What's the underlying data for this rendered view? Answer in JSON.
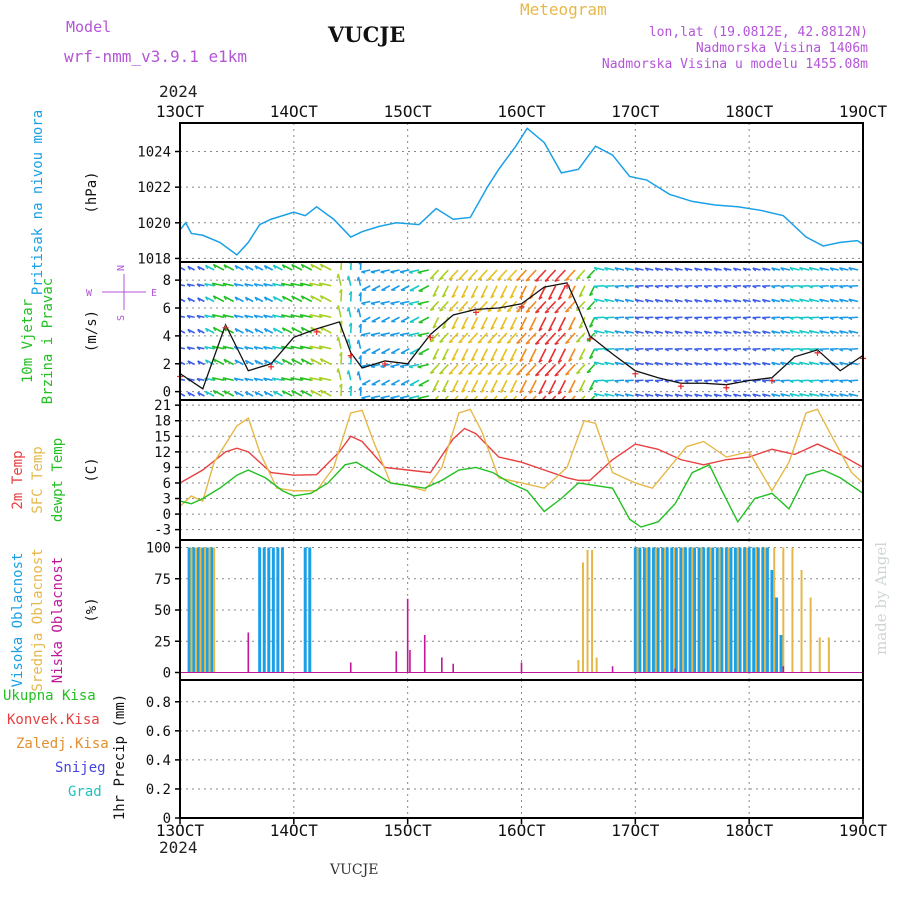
{
  "header": {
    "model_label": "Model",
    "model_name": "wrf-nmm_v3.9.1 e1km",
    "station": "VUCJE",
    "meteogram": "Meteogram",
    "lonlat": "lon,lat (19.0812E, 42.8812N)",
    "elev": "Nadmorska Visina 1406m",
    "elev_model": "Nadmorska Visina u modelu 1455.08m",
    "year": "2024",
    "footer_station": "VUCJE",
    "watermark": "made by Angel"
  },
  "colors": {
    "purple": "#b455d8",
    "gold": "#e6b84a",
    "blue": "#1aa0e6",
    "red": "#e84040",
    "orange": "#e09030",
    "green": "#22c022",
    "magenta": "#c0189a",
    "grid": "#888888"
  },
  "time_axis": {
    "labels": [
      "13OCT",
      "14OCT",
      "15OCT",
      "16OCT",
      "17OCT",
      "18OCT",
      "19OCT"
    ],
    "days": [
      13,
      14,
      15,
      16,
      17,
      18,
      19
    ],
    "year_label": "2024"
  },
  "panels": {
    "pressure": {
      "labels": [
        {
          "text": "Pritisak na nivou mora",
          "color": "#1aa0e6"
        }
      ],
      "unit": "(hPa)",
      "ticks": [
        "1018",
        "1020",
        "1022",
        "1024"
      ],
      "tick_values": [
        1018,
        1020,
        1022,
        1024
      ],
      "ylim": [
        1017.8,
        1025.6
      ]
    },
    "wind": {
      "labels": [
        {
          "text": "10m Vjetar",
          "color": "#22c022"
        },
        {
          "text": "Brzina i Pravac",
          "color": "#22c022"
        }
      ],
      "unit": "(m/s)",
      "ticks": [
        "0",
        "2",
        "4",
        "6",
        "8"
      ],
      "tick_values": [
        0,
        2,
        4,
        6,
        8
      ],
      "ylim": [
        -0.6,
        9.3
      ],
      "compass": {
        "n": "N",
        "s": "S",
        "w": "W",
        "e": "E"
      }
    },
    "temperature": {
      "labels": [
        {
          "text": "2m Temp",
          "color": "#e84040"
        },
        {
          "text": "SFC Temp",
          "color": "#e6b84a"
        },
        {
          "text": "dewpt Temp",
          "color": "#22c022"
        }
      ],
      "unit": "(C)",
      "ticks": [
        "-3",
        "0",
        "3",
        "6",
        "9",
        "12",
        "15",
        "18",
        "21"
      ],
      "tick_values": [
        -3,
        0,
        3,
        6,
        9,
        12,
        15,
        18,
        21
      ],
      "ylim": [
        -5,
        22
      ]
    },
    "cloud": {
      "labels": [
        {
          "text": "Visoka Oblacnost",
          "color": "#1aa0e6"
        },
        {
          "text": "Srednja Oblacnost",
          "color": "#e6b84a"
        },
        {
          "text": "Niska Oblacnost",
          "color": "#c0189a"
        }
      ],
      "unit": "(%)",
      "ticks": [
        "0",
        "25",
        "50",
        "75",
        "100"
      ],
      "tick_values": [
        0,
        25,
        50,
        75,
        100
      ],
      "ylim": [
        -6,
        106
      ]
    },
    "precip": {
      "legend": [
        {
          "text": "Ukupna Kisa",
          "color": "#22c022"
        },
        {
          "text": "Konvek.Kisa",
          "color": "#e84040"
        },
        {
          "text": "Zaledj.Kisa",
          "color": "#e09030"
        },
        {
          "text": "Snijeg",
          "color": "#4444e0"
        },
        {
          "text": "Grad",
          "color": "#20c0c0"
        }
      ],
      "unit": "1hr Precip (mm)",
      "ticks": [
        "0",
        "0.2",
        "0.4",
        "0.6",
        "0.8"
      ],
      "tick_values": [
        0,
        0.2,
        0.4,
        0.6,
        0.8
      ],
      "ylim": [
        0,
        0.95
      ]
    }
  },
  "chart_data": [
    {
      "type": "line",
      "series": [
        {
          "name": "Pritisak na nivou mora",
          "x": [
            13.0,
            13.05,
            13.1,
            13.2,
            13.35,
            13.5,
            13.6,
            13.7,
            13.8,
            14.0,
            14.1,
            14.2,
            14.35,
            14.5,
            14.6,
            14.75,
            14.9,
            15.1,
            15.25,
            15.4,
            15.55,
            15.7,
            15.8,
            15.95,
            16.05,
            16.2,
            16.35,
            16.5,
            16.65,
            16.8,
            16.95,
            17.1,
            17.3,
            17.5,
            17.7,
            17.9,
            18.1,
            18.3,
            18.5,
            18.65,
            18.8,
            18.95,
            19.0
          ],
          "y": [
            1019.6,
            1020.0,
            1019.4,
            1019.3,
            1018.9,
            1018.2,
            1018.9,
            1019.9,
            1020.2,
            1020.6,
            1020.4,
            1020.9,
            1020.2,
            1019.2,
            1019.5,
            1019.8,
            1020.0,
            1019.9,
            1020.8,
            1020.2,
            1020.3,
            1022.0,
            1023.0,
            1024.3,
            1025.3,
            1024.5,
            1022.8,
            1023.0,
            1024.3,
            1023.8,
            1022.6,
            1022.4,
            1021.6,
            1021.2,
            1021.0,
            1020.9,
            1020.7,
            1020.4,
            1019.2,
            1018.7,
            1018.9,
            1019.0,
            1018.8
          ]
        }
      ]
    },
    {
      "type": "line",
      "series": [
        {
          "name": "",
          "x": [
            13.0,
            13.2,
            13.4,
            13.6,
            13.8,
            14.0,
            14.2,
            14.4,
            14.5,
            14.6,
            14.8,
            15.0,
            15.2,
            15.4,
            15.6,
            15.8,
            16.0,
            16.2,
            16.4,
            16.5,
            16.6,
            16.8,
            17.0,
            17.2,
            17.4,
            17.6,
            17.8,
            18.0,
            18.2,
            18.4,
            18.6,
            18.8,
            19.0
          ],
          "y": [
            1.3,
            0.2,
            4.8,
            1.5,
            2.0,
            3.9,
            4.5,
            5.0,
            2.8,
            1.7,
            2.2,
            2.0,
            4.1,
            5.5,
            5.9,
            6.0,
            6.3,
            7.5,
            7.8,
            6.0,
            4.0,
            2.7,
            1.5,
            1.0,
            0.6,
            0.6,
            0.5,
            0.8,
            1.0,
            2.5,
            3.0,
            1.5,
            2.6
          ]
        }
      ]
    },
    {
      "type": "line",
      "series": [
        {
          "name": "2m Temp",
          "x": [
            13.0,
            13.2,
            13.4,
            13.5,
            13.6,
            13.8,
            14.0,
            14.2,
            14.4,
            14.5,
            14.6,
            14.8,
            15.0,
            15.2,
            15.4,
            15.5,
            15.6,
            15.8,
            16.0,
            16.2,
            16.4,
            16.5,
            16.6,
            16.8,
            17.0,
            17.2,
            17.4,
            17.6,
            17.8,
            18.0,
            18.2,
            18.4,
            18.5,
            18.6,
            18.8,
            19.0
          ],
          "y": [
            6.0,
            8.5,
            12.0,
            12.7,
            12.0,
            8.0,
            7.5,
            7.6,
            12.0,
            15.0,
            14.0,
            9.0,
            8.5,
            8.0,
            14.5,
            16.5,
            15.5,
            11.0,
            10.0,
            8.5,
            7.0,
            6.5,
            6.5,
            10.5,
            13.5,
            12.5,
            10.5,
            9.5,
            10.5,
            11.0,
            12.5,
            11.5,
            12.5,
            13.5,
            11.5,
            9.0
          ]
        },
        {
          "name": "SFC Temp",
          "x": [
            13.0,
            13.1,
            13.2,
            13.3,
            13.5,
            13.6,
            13.7,
            13.85,
            14.0,
            14.2,
            14.35,
            14.5,
            14.6,
            14.7,
            14.85,
            15.0,
            15.15,
            15.3,
            15.45,
            15.55,
            15.65,
            15.8,
            16.0,
            16.2,
            16.4,
            16.55,
            16.65,
            16.8,
            17.0,
            17.15,
            17.3,
            17.45,
            17.6,
            17.8,
            18.0,
            18.2,
            18.35,
            18.5,
            18.6,
            18.75,
            18.9,
            19.0
          ],
          "y": [
            1.5,
            3.5,
            2.5,
            10.0,
            17.0,
            18.5,
            12.0,
            5.0,
            4.5,
            4.5,
            9.0,
            19.5,
            20.0,
            14.0,
            6.0,
            5.5,
            4.5,
            9.0,
            19.5,
            20.2,
            16.0,
            7.0,
            6.0,
            5.0,
            9.0,
            18.0,
            17.5,
            8.0,
            6.0,
            5.0,
            9.0,
            13.0,
            14.0,
            11.0,
            12.0,
            4.5,
            10.0,
            19.5,
            20.2,
            14.0,
            8.0,
            6.0
          ]
        },
        {
          "name": "dewpt Temp",
          "x": [
            13.0,
            13.1,
            13.2,
            13.35,
            13.5,
            13.6,
            13.75,
            13.9,
            14.0,
            14.15,
            14.3,
            14.45,
            14.55,
            14.7,
            14.85,
            15.0,
            15.15,
            15.3,
            15.45,
            15.6,
            15.75,
            15.9,
            16.05,
            16.2,
            16.35,
            16.5,
            16.65,
            16.8,
            16.95,
            17.05,
            17.2,
            17.35,
            17.5,
            17.65,
            17.75,
            17.9,
            18.05,
            18.2,
            18.35,
            18.5,
            18.65,
            18.8,
            19.0
          ],
          "y": [
            2.5,
            2.0,
            3.0,
            5.0,
            7.5,
            8.5,
            7.0,
            4.5,
            3.5,
            4.0,
            6.0,
            9.5,
            10.0,
            8.0,
            6.0,
            5.5,
            5.0,
            6.5,
            8.5,
            9.0,
            8.0,
            6.0,
            4.5,
            0.5,
            3.0,
            6.0,
            5.5,
            5.0,
            -1.0,
            -2.5,
            -1.5,
            2.0,
            8.0,
            9.5,
            5.0,
            -1.5,
            3.0,
            4.0,
            1.0,
            7.5,
            8.5,
            7.0,
            4.0
          ]
        }
      ]
    },
    {
      "type": "bar",
      "series": [
        {
          "name": "Visoka Oblacnost",
          "x": [
            13.08,
            13.12,
            13.16,
            13.2,
            13.24,
            13.28,
            13.7,
            13.74,
            13.78,
            13.82,
            13.86,
            13.9,
            14.1,
            14.14,
            17.0,
            17.04,
            17.08,
            17.12,
            17.16,
            17.2,
            17.24,
            17.28,
            17.32,
            17.36,
            17.4,
            17.44,
            17.48,
            17.52,
            17.56,
            17.6,
            17.64,
            17.68,
            17.72,
            17.76,
            17.8,
            17.84,
            17.88,
            17.92,
            17.96,
            18.0,
            18.04,
            18.08,
            18.12,
            18.16,
            18.2,
            18.24,
            18.28
          ],
          "y": [
            100,
            100,
            100,
            100,
            100,
            100,
            100,
            100,
            100,
            100,
            100,
            100,
            100,
            100,
            100,
            100,
            100,
            100,
            100,
            100,
            100,
            100,
            100,
            100,
            100,
            100,
            100,
            100,
            100,
            100,
            100,
            100,
            100,
            100,
            100,
            100,
            100,
            100,
            100,
            100,
            100,
            100,
            100,
            100,
            82,
            60,
            30
          ]
        },
        {
          "name": "Srednja Oblacnost",
          "x": [
            13.1,
            13.14,
            13.18,
            13.22,
            13.26,
            13.3,
            16.5,
            16.54,
            16.58,
            16.62,
            16.66,
            17.02,
            17.1,
            17.18,
            17.26,
            17.34,
            17.42,
            17.5,
            17.58,
            17.66,
            17.74,
            17.82,
            17.9,
            17.98,
            18.06,
            18.14,
            18.22,
            18.3,
            18.38,
            18.46,
            18.54,
            18.62,
            18.7
          ],
          "y": [
            100,
            100,
            100,
            100,
            100,
            100,
            10,
            88,
            98,
            98,
            12,
            100,
            100,
            100,
            100,
            100,
            100,
            100,
            100,
            100,
            100,
            100,
            100,
            100,
            100,
            100,
            100,
            100,
            100,
            82,
            60,
            28,
            28
          ]
        },
        {
          "name": "Niska Oblacnost",
          "x": [
            13.6,
            14.5,
            14.9,
            15.0,
            15.02,
            15.15,
            15.3,
            15.4,
            16.0,
            16.8,
            17.35,
            18.3
          ],
          "y": [
            32,
            8,
            17,
            59,
            18,
            30,
            12,
            7,
            8,
            5,
            3,
            5
          ]
        }
      ]
    },
    {
      "type": "bar",
      "series": []
    }
  ]
}
